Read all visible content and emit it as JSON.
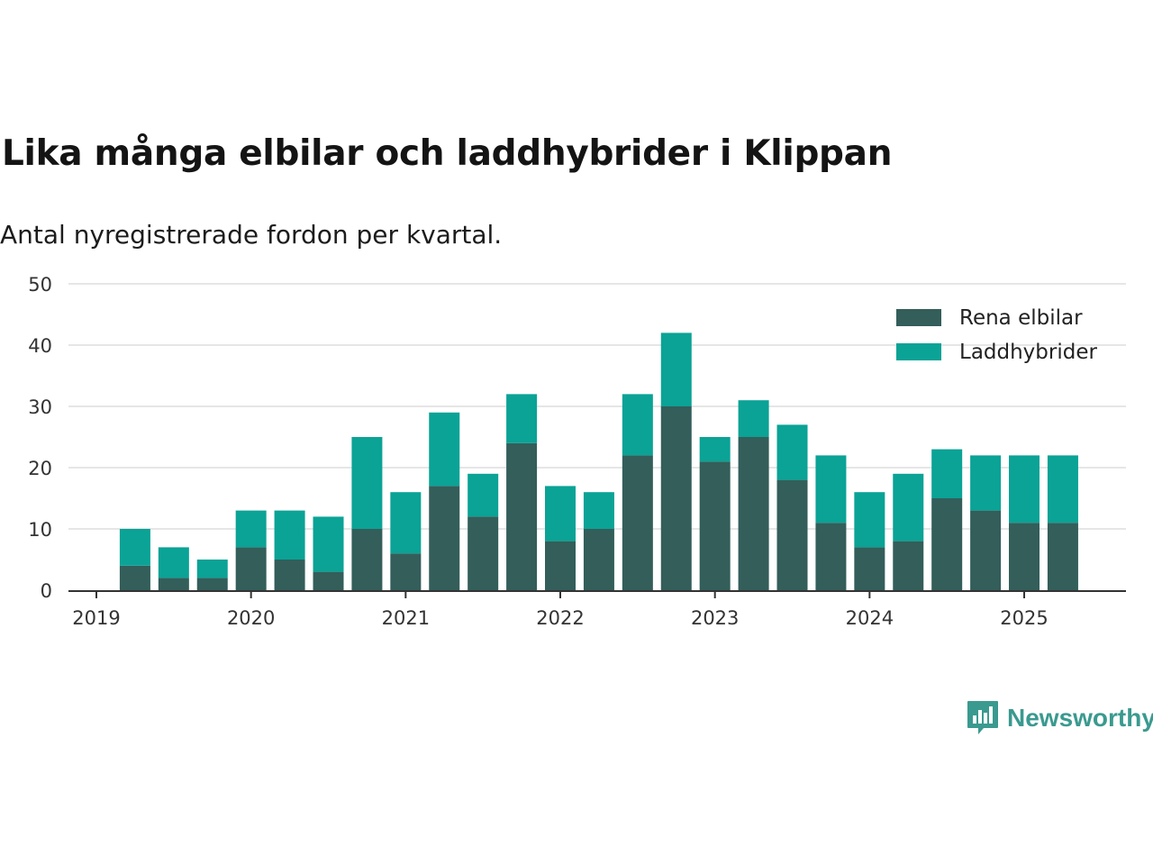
{
  "chart_data": {
    "type": "bar",
    "stacked": true,
    "title": "Lika många elbilar och laddhybrider i Klippan",
    "subtitle": "Antal nyregistrerade fordon per kvartal.",
    "xlabel": "",
    "ylabel": "",
    "ylim": [
      0,
      50
    ],
    "yticks": [
      "0",
      "10",
      "20",
      "30",
      "40",
      "50"
    ],
    "xticks": [
      "2019",
      "2020",
      "2021",
      "2022",
      "2023",
      "2024",
      "2025"
    ],
    "categories": [
      "2019 Q2",
      "2019 Q3",
      "2019 Q4",
      "2020 Q1",
      "2020 Q2",
      "2020 Q3",
      "2020 Q4",
      "2021 Q1",
      "2021 Q2",
      "2021 Q3",
      "2021 Q4",
      "2022 Q1",
      "2022 Q2",
      "2022 Q3",
      "2022 Q4",
      "2023 Q1",
      "2023 Q2",
      "2023 Q3",
      "2023 Q4",
      "2024 Q1",
      "2024 Q2",
      "2024 Q3",
      "2024 Q4",
      "2025 Q1",
      "2025 Q2"
    ],
    "series": [
      {
        "name": "Rena elbilar",
        "color": "#335e5a",
        "values": [
          4,
          2,
          2,
          7,
          5,
          3,
          10,
          6,
          17,
          12,
          24,
          8,
          10,
          22,
          30,
          21,
          25,
          18,
          11,
          7,
          8,
          15,
          13,
          11,
          11
        ]
      },
      {
        "name": "Laddhybrider",
        "color": "#0aa396",
        "values": [
          6,
          5,
          3,
          6,
          8,
          9,
          15,
          10,
          12,
          7,
          8,
          9,
          6,
          10,
          12,
          4,
          6,
          9,
          11,
          9,
          11,
          8,
          9,
          11,
          11
        ]
      }
    ],
    "grid": true,
    "legend_position": "top-right"
  },
  "brand": {
    "name": "Newsworthy",
    "icon": "bar-chart-speech-bubble-icon",
    "color": "#3a9a8f"
  }
}
